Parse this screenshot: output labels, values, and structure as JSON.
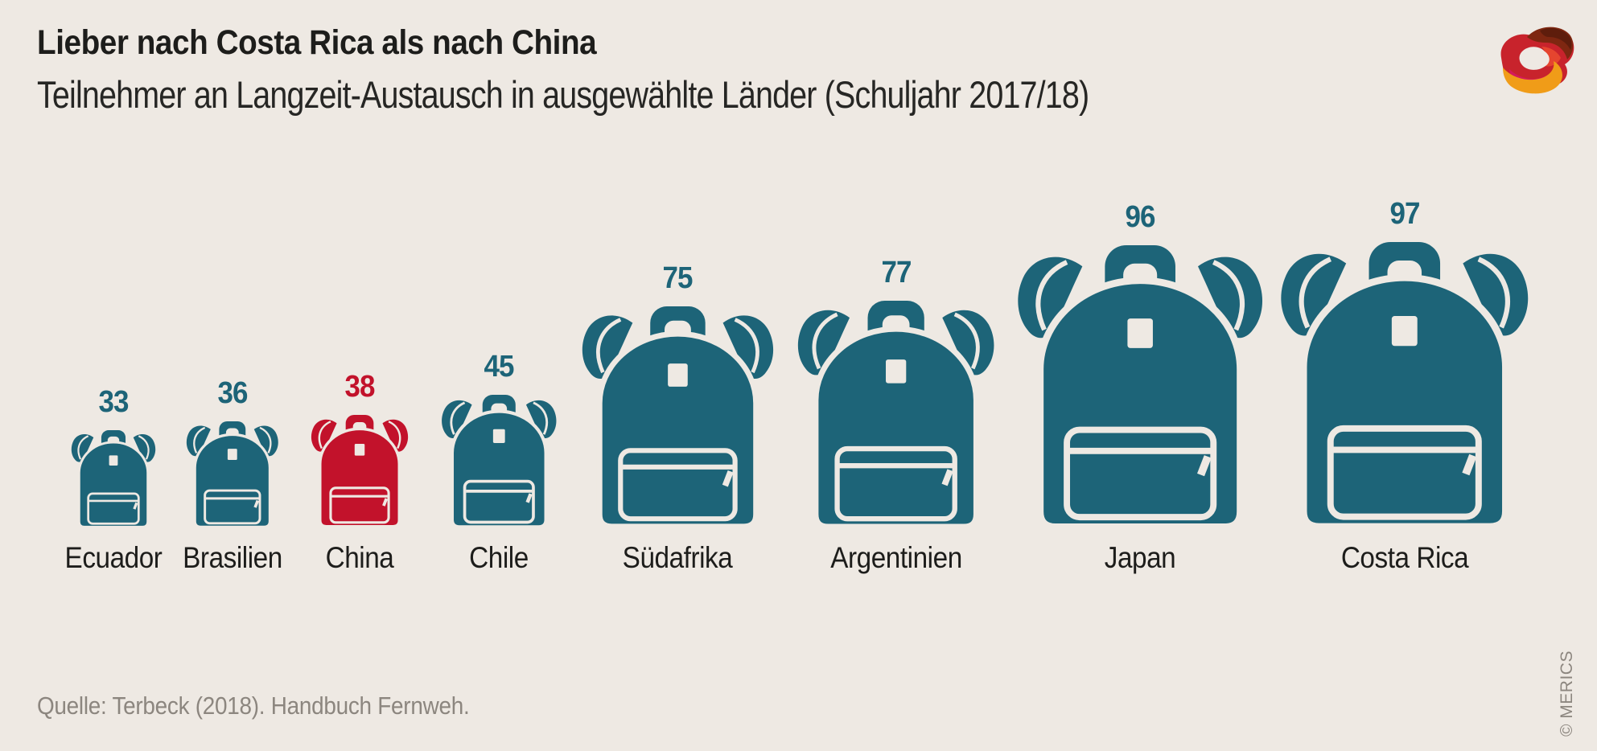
{
  "header": {
    "title": "Lieber nach Costa Rica als nach China",
    "subtitle": "Teilnehmer an Langzeit-Austausch in ausgewählte Länder (Schuljahr 2017/18)"
  },
  "chart_data": {
    "type": "bar",
    "variant": "pictogram-backpacks",
    "title": "Lieber nach Costa Rica als nach China",
    "subtitle": "Teilnehmer an Langzeit-Austausch in ausgewählte Länder (Schuljahr 2017/18)",
    "categories": [
      "Ecuador",
      "Brasilien",
      "China",
      "Chile",
      "Südafrika",
      "Argentinien",
      "Japan",
      "Costa Rica"
    ],
    "values": [
      33,
      36,
      38,
      45,
      75,
      77,
      96,
      97
    ],
    "bar_color": "#1D6478",
    "highlight": {
      "category": "China",
      "color": "#C2122B"
    },
    "value_labels_shown": true,
    "category_label_color": "#1D1D1B",
    "axes_shown": false,
    "grid": false,
    "legend": "none"
  },
  "footer": {
    "source": "Quelle: Terbeck (2018). Handbuch Fernweh.",
    "copyright": "© MERICS"
  },
  "colors": {
    "background": "#EEE9E3",
    "teal": "#1D6478",
    "red": "#C2122B",
    "text_dark": "#1D1D1B",
    "text_gray": "#8C867F"
  },
  "logo": {
    "name": "merics-logo",
    "colors": {
      "maroon": "#7E2711",
      "dark": "#5E1D0C",
      "red": "#C8232C",
      "bright": "#E5452F",
      "magenta": "#D41A5B",
      "orange": "#F09C18"
    }
  }
}
